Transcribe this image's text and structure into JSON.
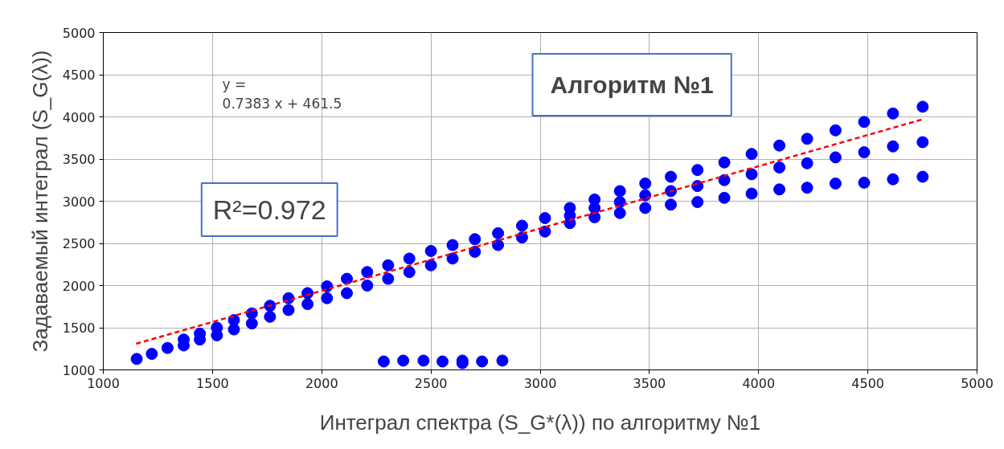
{
  "chart_data": {
    "type": "scatter",
    "xlabel": "Интеграл спектра (S_G*(λ)) по алгоритму №1",
    "ylabel": "Задаваемый интеграл (S_G(λ))",
    "annotations": [
      "y =\n0.7383 x + 461.5",
      "Алгоритм №1",
      "R²=0.972"
    ],
    "xlim": [
      1000,
      5000
    ],
    "xticks": [
      1000,
      1500,
      2000,
      2500,
      3000,
      3500,
      4000,
      4500,
      5000
    ],
    "ylim": [
      1000,
      5000
    ],
    "yticks": [
      1000,
      1500,
      2000,
      2500,
      3000,
      3500,
      4000,
      4500,
      5000
    ],
    "grid": true,
    "marker": "circle",
    "series": [
      {
        "color": "#0000ff",
        "x": [
          1153,
          1222,
          1294,
          1368,
          1368,
          1442,
          1442,
          1520,
          1520,
          1598,
          1598,
          1680,
          1680,
          1763,
          1763,
          1848,
          1848,
          1935,
          1935,
          2024,
          2024,
          2115,
          2115,
          2208,
          2208,
          2304,
          2304,
          2401,
          2401,
          2500,
          2500,
          2599,
          2599,
          2701,
          2701,
          2807,
          2807,
          2917,
          2917,
          3022,
          3022,
          3136,
          3136,
          3136,
          3249,
          3249,
          3249,
          3365,
          3365,
          3365,
          3481,
          3481,
          3481,
          3598,
          3598,
          3598,
          3720,
          3720,
          3720,
          3843,
          3843,
          3843,
          3968,
          3968,
          3968,
          4095,
          4095,
          4095,
          4222,
          4222,
          4222,
          4352,
          4352,
          4352,
          4483,
          4483,
          4483,
          4615,
          4615,
          4615,
          4751,
          4751,
          4751,
          2284,
          2373,
          2466,
          2553,
          2644,
          2644,
          2734,
          2827
        ],
        "values": [
          1130,
          1190,
          1260,
          1290,
          1360,
          1360,
          1430,
          1410,
          1500,
          1480,
          1590,
          1550,
          1670,
          1630,
          1760,
          1710,
          1850,
          1780,
          1910,
          1850,
          1990,
          1910,
          2080,
          2000,
          2160,
          2080,
          2240,
          2160,
          2320,
          2240,
          2410,
          2320,
          2480,
          2400,
          2550,
          2480,
          2620,
          2570,
          2710,
          2640,
          2800,
          2740,
          2830,
          2920,
          2810,
          2920,
          3020,
          2860,
          2990,
          3120,
          2920,
          3070,
          3210,
          2960,
          3120,
          3290,
          2990,
          3180,
          3370,
          3040,
          3250,
          3460,
          3090,
          3320,
          3560,
          3140,
          3400,
          3660,
          3160,
          3450,
          3740,
          3210,
          3520,
          3840,
          3220,
          3580,
          3940,
          3260,
          3650,
          4040,
          3290,
          3700,
          4120,
          1100,
          1110,
          1110,
          1100,
          1080,
          1110,
          1100,
          1110
        ]
      },
      {
        "type": "line",
        "color": "#ff0000",
        "line_style": "dashed",
        "marker": "none",
        "x": [
          1150,
          4750
        ],
        "values": [
          1310,
          3970
        ]
      }
    ]
  }
}
